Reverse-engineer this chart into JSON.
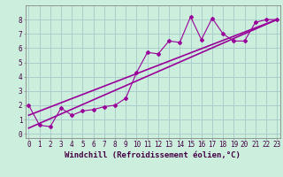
{
  "title": "",
  "xlabel": "Windchill (Refroidissement éolien,°C)",
  "ylabel": "",
  "background_color": "#cceedd",
  "line_color": "#990099",
  "grid_color": "#aacccc",
  "scatter_x": [
    0,
    1,
    2,
    3,
    4,
    5,
    6,
    7,
    8,
    9,
    10,
    11,
    12,
    13,
    14,
    15,
    16,
    17,
    18,
    19,
    20,
    21,
    22,
    23
  ],
  "scatter_y": [
    2.0,
    0.6,
    0.5,
    1.8,
    1.3,
    1.6,
    1.7,
    1.9,
    2.0,
    2.5,
    4.3,
    5.7,
    5.6,
    6.5,
    6.4,
    8.2,
    6.6,
    8.1,
    7.0,
    6.5,
    6.5,
    7.8,
    8.0,
    8.0
  ],
  "trend_x": [
    0,
    23
  ],
  "trend_y": [
    0.4,
    8.0
  ],
  "trend2_x": [
    0,
    23
  ],
  "trend2_y": [
    1.3,
    8.0
  ],
  "xlim": [
    -0.3,
    23.3
  ],
  "ylim": [
    -0.3,
    9.0
  ],
  "xtick_vals": [
    0,
    1,
    2,
    3,
    4,
    5,
    6,
    7,
    8,
    9,
    10,
    11,
    12,
    13,
    14,
    15,
    16,
    17,
    18,
    19,
    20,
    21,
    22,
    23
  ],
  "xtick_labels": [
    "0",
    "1",
    "2",
    "3",
    "4",
    "5",
    "6",
    "7",
    "8",
    "9",
    "10",
    "11",
    "12",
    "13",
    "14",
    "15",
    "16",
    "17",
    "18",
    "19",
    "20",
    "21",
    "22",
    "23"
  ],
  "ytick_vals": [
    0,
    1,
    2,
    3,
    4,
    5,
    6,
    7,
    8
  ],
  "ytick_labels": [
    "0",
    "1",
    "2",
    "3",
    "4",
    "5",
    "6",
    "7",
    "8"
  ],
  "xlabel_fontsize": 6.5,
  "tick_fontsize": 5.5
}
